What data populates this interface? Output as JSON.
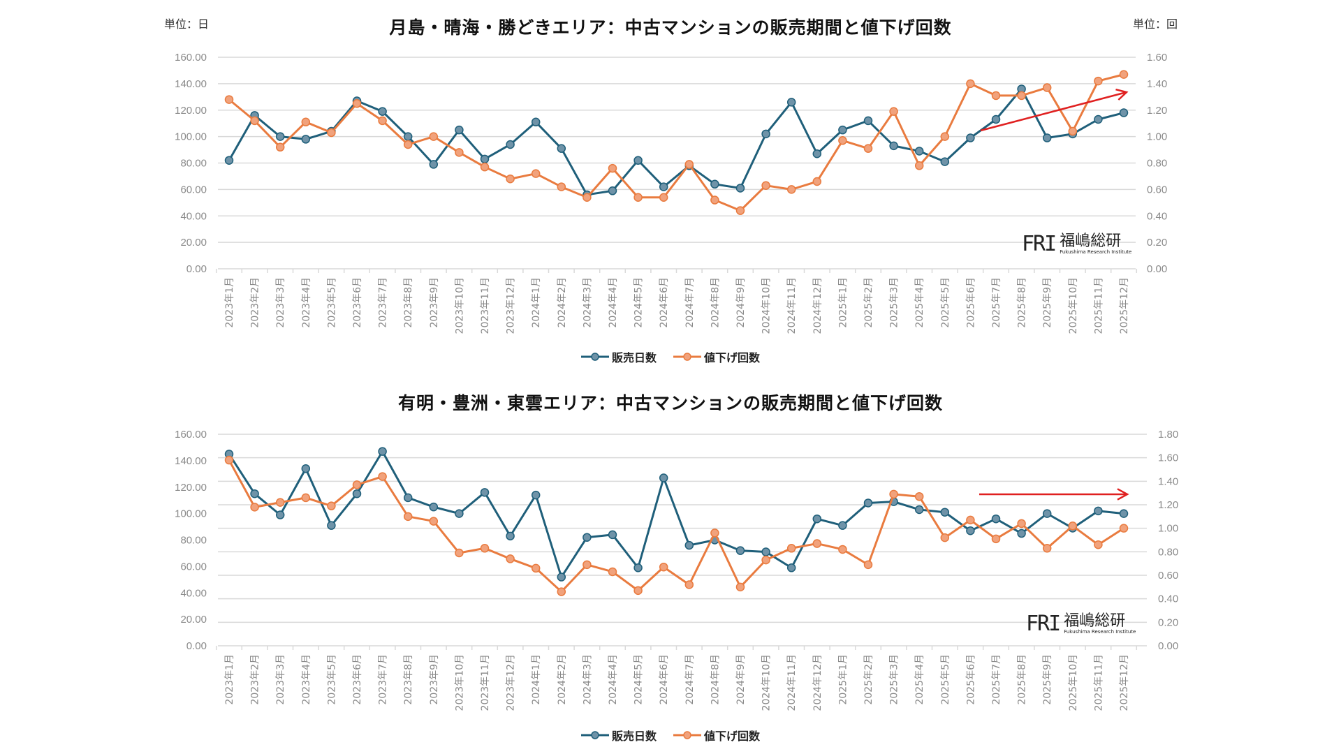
{
  "colors": {
    "days": "#1f5f7a",
    "days_marker": "#6f93a8",
    "cuts": "#e97b3f",
    "cuts_marker": "#f1a27c",
    "arrow": "#e02020",
    "grid": "#d9d9d9"
  },
  "legend": {
    "days": "販売日数",
    "cuts": "値下げ回数"
  },
  "logo": {
    "mark": "FRI",
    "name_jp": "福嶋総研",
    "name_en": "Fukushima Research Institute"
  },
  "months": [
    "2023年1月",
    "2023年2月",
    "2023年3月",
    "2023年4月",
    "2023年5月",
    "2023年6月",
    "2023年7月",
    "2023年8月",
    "2023年9月",
    "2023年10月",
    "2023年11月",
    "2023年12月",
    "2024年1月",
    "2024年2月",
    "2024年3月",
    "2024年4月",
    "2024年5月",
    "2024年6月",
    "2024年7月",
    "2024年8月",
    "2024年9月",
    "2024年10月",
    "2024年11月",
    "2024年12月",
    "2025年1月",
    "2025年2月",
    "2025年3月",
    "2025年4月",
    "2025年5月",
    "2025年6月",
    "2025年7月",
    "2025年8月",
    "2025年9月",
    "2025年10月",
    "2025年11月",
    "2025年12月"
  ],
  "chart_data": [
    {
      "type": "line",
      "title": "月島・晴海・勝どきエリア：中古マンションの販売期間と値下げ回数",
      "ylabel_left": "単位：日",
      "ylabel_right": "単位：回",
      "ylim_left": [
        0,
        160
      ],
      "ylim_right": [
        0,
        1.6
      ],
      "yticks_left": [
        "0.00",
        "20.00",
        "40.00",
        "60.00",
        "80.00",
        "100.00",
        "120.00",
        "140.00",
        "160.00"
      ],
      "yticks_right": [
        "0.00",
        "0.20",
        "0.40",
        "0.60",
        "0.80",
        "1.00",
        "1.20",
        "1.40",
        "1.60"
      ],
      "grid": true,
      "legend_position": "bottom",
      "annotation": "red arrow trending upward 2025年6月–2025年12月",
      "series": [
        {
          "name": "販売日数",
          "axis": "left",
          "values": [
            82,
            116,
            100,
            98,
            104,
            127,
            119,
            100,
            79,
            105,
            83,
            94,
            111,
            91,
            56,
            59,
            82,
            62,
            78,
            64,
            61,
            102,
            126,
            87,
            105,
            112,
            93,
            89,
            81,
            99,
            113,
            136,
            99,
            102,
            113,
            118
          ]
        },
        {
          "name": "値下げ回数",
          "axis": "right",
          "values": [
            1.28,
            1.12,
            0.92,
            1.11,
            1.03,
            1.25,
            1.12,
            0.94,
            1.0,
            0.88,
            0.77,
            0.68,
            0.72,
            0.62,
            0.54,
            0.76,
            0.54,
            0.54,
            0.79,
            0.52,
            0.44,
            0.63,
            0.6,
            0.66,
            0.97,
            0.91,
            1.19,
            0.78,
            1.0,
            1.4,
            1.31,
            1.31,
            1.37,
            1.04,
            1.42,
            1.47
          ]
        }
      ]
    },
    {
      "type": "line",
      "title": "有明・豊洲・東雲エリア：中古マンションの販売期間と値下げ回数",
      "ylim_left": [
        0,
        160
      ],
      "ylim_right": [
        0,
        1.8
      ],
      "yticks_left": [
        "0.00",
        "20.00",
        "40.00",
        "60.00",
        "80.00",
        "100.00",
        "120.00",
        "140.00",
        "160.00"
      ],
      "yticks_right": [
        "0.00",
        "0.20",
        "0.40",
        "0.60",
        "0.80",
        "1.00",
        "1.20",
        "1.40",
        "1.60",
        "1.80"
      ],
      "grid": true,
      "legend_position": "bottom",
      "annotation": "red horizontal arrow 2025年6月–2025年12月",
      "series": [
        {
          "name": "販売日数",
          "axis": "left",
          "values": [
            145,
            115,
            99,
            134,
            91,
            115,
            147,
            112,
            105,
            100,
            116,
            83,
            114,
            52,
            82,
            84,
            59,
            127,
            76,
            80,
            72,
            71,
            59,
            96,
            91,
            108,
            109,
            103,
            101,
            87,
            96,
            85,
            100,
            89,
            102,
            100
          ]
        },
        {
          "name": "値下げ回数",
          "axis": "right",
          "values": [
            1.58,
            1.18,
            1.22,
            1.26,
            1.19,
            1.37,
            1.44,
            1.1,
            1.06,
            0.79,
            0.83,
            0.74,
            0.66,
            0.46,
            0.69,
            0.63,
            0.47,
            0.67,
            0.52,
            0.96,
            0.5,
            0.73,
            0.83,
            0.87,
            0.82,
            0.69,
            1.29,
            1.27,
            0.92,
            1.07,
            0.91,
            1.04,
            0.83,
            1.02,
            0.86,
            1.0
          ]
        }
      ]
    }
  ]
}
